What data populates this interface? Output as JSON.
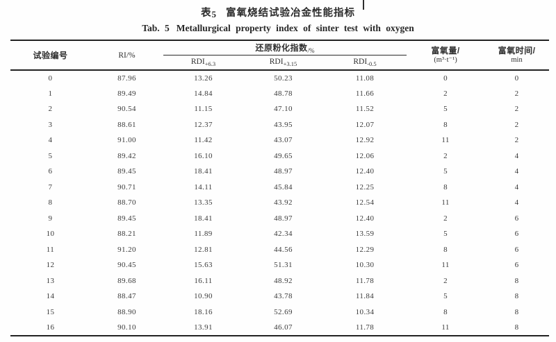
{
  "titles": {
    "zh_label": "表",
    "zh_number": "5",
    "zh_title": "富氧烧结试验冶金性能指标",
    "en_label": "Tab. 5",
    "en_title": "Metallurgical property index of sinter test with oxygen"
  },
  "table": {
    "headers": {
      "test_no": "试验编号",
      "ri": "RI/%",
      "rdi_group": "还原粉化指数",
      "rdi_group_unit": "/%",
      "rdi_cols": [
        {
          "base": "RDI",
          "sub": "+6.3"
        },
        {
          "base": "RDI",
          "sub": "+3.15"
        },
        {
          "base": "RDI",
          "sub": "-0.5"
        }
      ],
      "oxygen_amount_line1": "富氧量/",
      "oxygen_amount_line2": "(m³·t⁻¹)",
      "oxygen_time_line1": "富氧时间/",
      "oxygen_time_line2": "min"
    },
    "rows": [
      [
        "0",
        "87.96",
        "13.26",
        "50.23",
        "11.08",
        "0",
        "0"
      ],
      [
        "1",
        "89.49",
        "14.84",
        "48.78",
        "11.66",
        "2",
        "2"
      ],
      [
        "2",
        "90.54",
        "11.15",
        "47.10",
        "11.52",
        "5",
        "2"
      ],
      [
        "3",
        "88.61",
        "12.37",
        "43.95",
        "12.07",
        "8",
        "2"
      ],
      [
        "4",
        "91.00",
        "11.42",
        "43.07",
        "12.92",
        "11",
        "2"
      ],
      [
        "5",
        "89.42",
        "16.10",
        "49.65",
        "12.06",
        "2",
        "4"
      ],
      [
        "6",
        "89.45",
        "18.41",
        "48.97",
        "12.40",
        "5",
        "4"
      ],
      [
        "7",
        "90.71",
        "14.11",
        "45.84",
        "12.25",
        "8",
        "4"
      ],
      [
        "8",
        "88.70",
        "13.35",
        "43.92",
        "12.54",
        "11",
        "4"
      ],
      [
        "9",
        "89.45",
        "18.41",
        "48.97",
        "12.40",
        "2",
        "6"
      ],
      [
        "10",
        "88.21",
        "11.89",
        "42.34",
        "13.59",
        "5",
        "6"
      ],
      [
        "11",
        "91.20",
        "12.81",
        "44.56",
        "12.29",
        "8",
        "6"
      ],
      [
        "12",
        "90.45",
        "15.63",
        "51.31",
        "10.30",
        "11",
        "6"
      ],
      [
        "13",
        "89.68",
        "16.11",
        "48.92",
        "11.78",
        "2",
        "8"
      ],
      [
        "14",
        "88.47",
        "10.90",
        "43.78",
        "11.84",
        "5",
        "8"
      ],
      [
        "15",
        "88.90",
        "18.16",
        "52.69",
        "10.34",
        "8",
        "8"
      ],
      [
        "16",
        "90.10",
        "13.91",
        "46.07",
        "11.78",
        "11",
        "8"
      ]
    ]
  }
}
